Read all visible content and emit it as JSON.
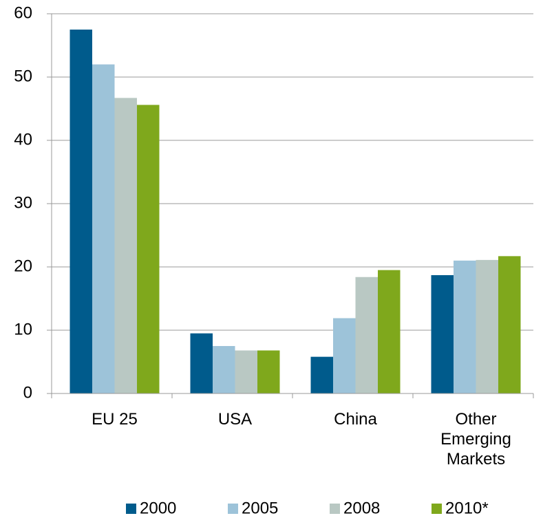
{
  "chart_data": {
    "type": "bar",
    "categories": [
      "EU 25",
      "USA",
      "China",
      "Other Emerging Markets"
    ],
    "series": [
      {
        "name": "2000",
        "color": "#005b8c",
        "values": [
          57.5,
          9.5,
          5.8,
          18.7
        ]
      },
      {
        "name": "2005",
        "color": "#9dc3d9",
        "values": [
          52,
          7.5,
          11.9,
          21
        ]
      },
      {
        "name": "2008",
        "color": "#b9c8c3",
        "values": [
          46.7,
          6.8,
          18.4,
          21.1
        ]
      },
      {
        "name": "2010*",
        "color": "#7fa81c",
        "values": [
          45.6,
          6.8,
          19.5,
          21.7
        ]
      }
    ],
    "ylim": [
      0,
      60
    ],
    "yticks": [
      0,
      10,
      20,
      30,
      40,
      50,
      60
    ],
    "grid": true,
    "legend": "bottom"
  }
}
